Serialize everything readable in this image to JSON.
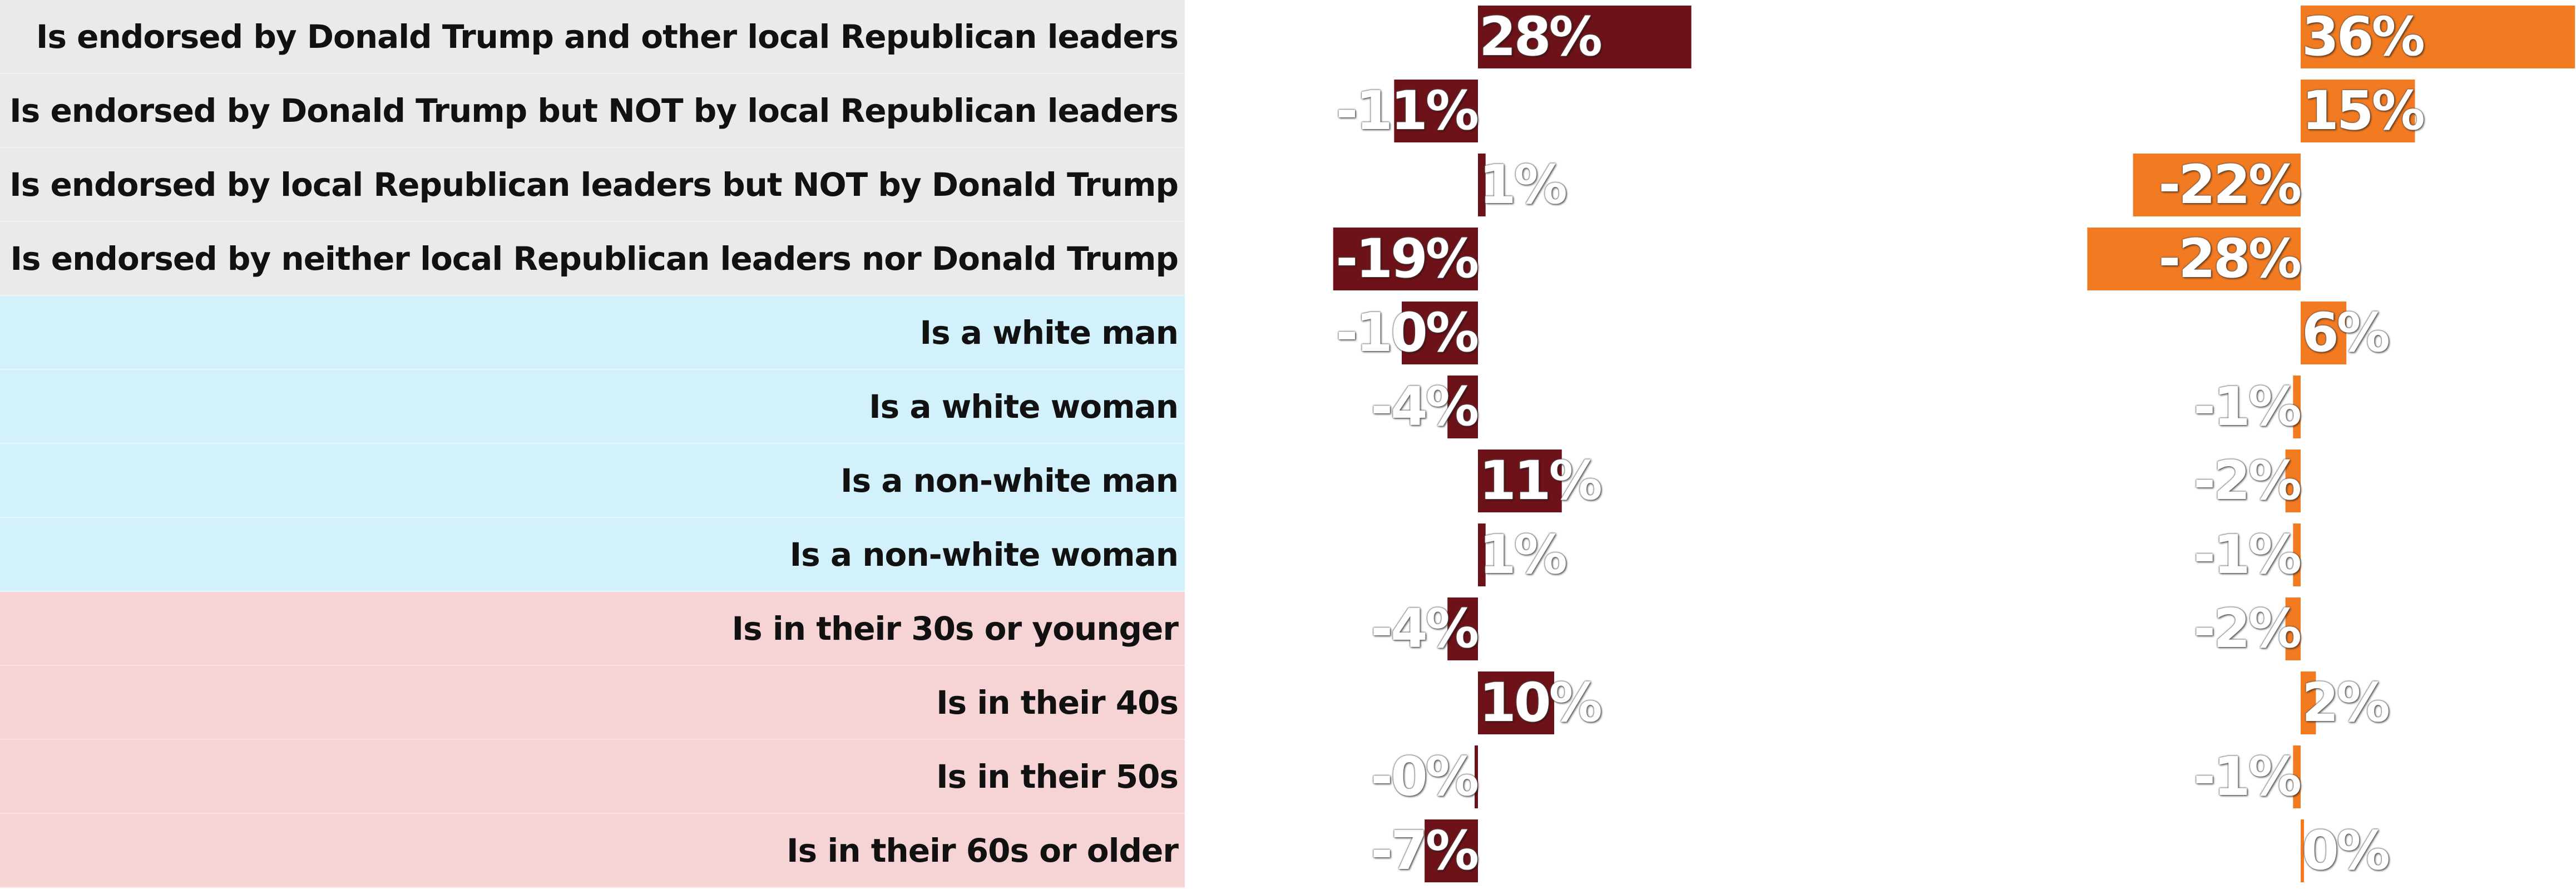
{
  "chart_data": {
    "type": "bar",
    "orientation": "horizontal",
    "value_format": "percent",
    "categories": [
      "Is endorsed by Donald Trump and other local Republican leaders",
      "Is endorsed by Donald Trump but NOT by local Republican leaders",
      "Is endorsed by local Republican leaders but NOT by Donald Trump",
      "Is endorsed by neither local Republican leaders nor Donald Trump",
      "Is a white man",
      "Is a white woman",
      "Is a non-white man",
      "Is a non-white woman",
      "Is in their 30s or younger",
      "Is in their 40s",
      "Is in their 50s",
      "Is in their 60s or older"
    ],
    "value_labels": [
      [
        "28%",
        "-11%",
        "1%",
        "-19%",
        "-10%",
        "-4%",
        "11%",
        "1%",
        "-4%",
        "10%",
        "-0%",
        "-7%"
      ],
      [
        "36%",
        "15%",
        "-22%",
        "-28%",
        "6%",
        "-1%",
        "-2%",
        "-1%",
        "-2%",
        "2%",
        "-1%",
        "0%"
      ]
    ],
    "category_groups": [
      {
        "rows": [
          0,
          1,
          2,
          3
        ],
        "color": "#e9eaec"
      },
      {
        "rows": [
          4,
          5,
          6,
          7
        ],
        "color": "#d3f1fb"
      },
      {
        "rows": [
          8,
          9,
          10,
          11
        ],
        "color": "#f6d4d5"
      }
    ],
    "series": [
      {
        "color": "#6e1219",
        "values": [
          28,
          -11,
          1,
          -19,
          -10,
          -4,
          11,
          1,
          -4,
          10,
          -0.2,
          -7
        ]
      },
      {
        "color": "#f27b22",
        "values": [
          36,
          15,
          -22,
          -28,
          6,
          -1,
          -2,
          -1,
          -2,
          2,
          -1,
          0.2
        ]
      }
    ]
  }
}
